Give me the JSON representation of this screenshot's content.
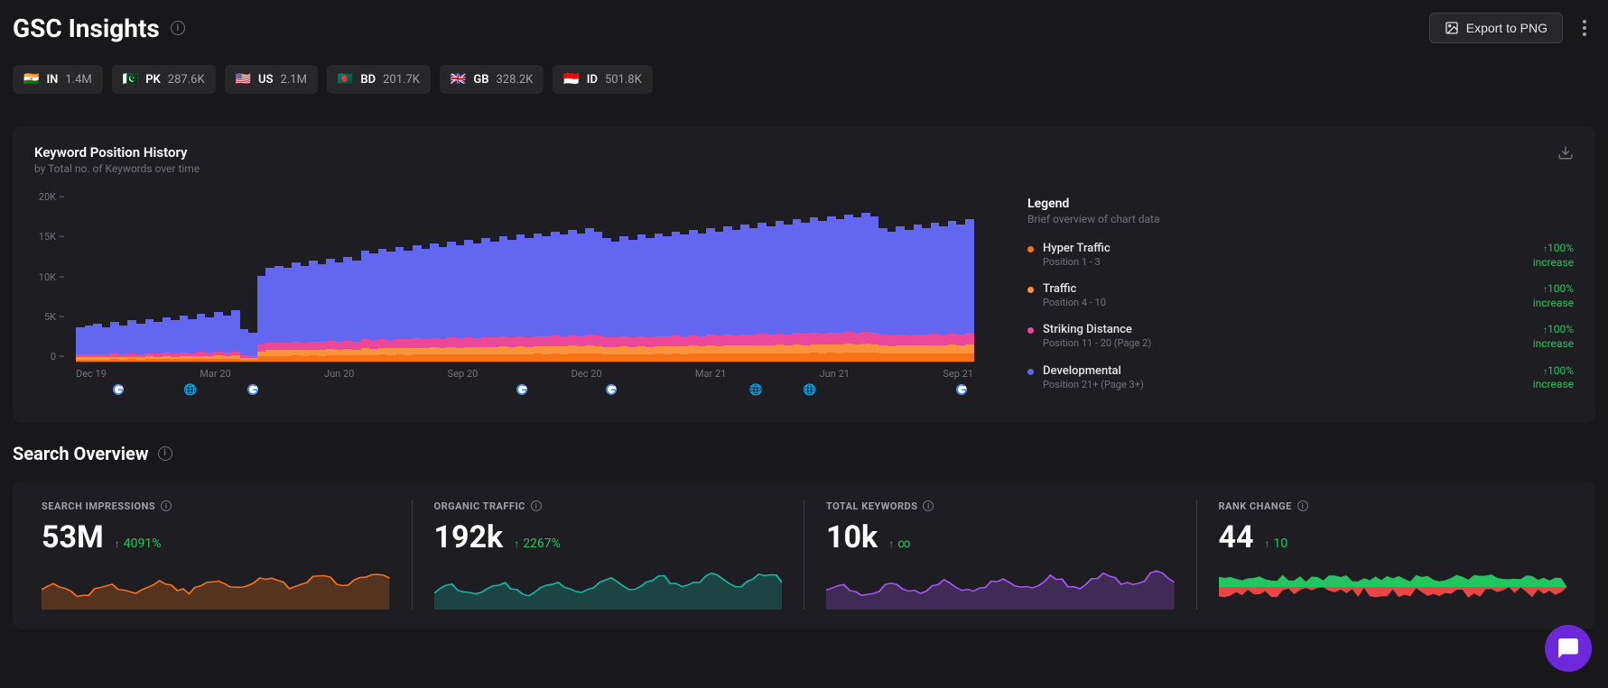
{
  "header": {
    "title": "GSC Insights",
    "export_label": "Export to PNG"
  },
  "countries": [
    {
      "flag": "🇮🇳",
      "code": "IN",
      "value": "1.4M"
    },
    {
      "flag": "🇵🇰",
      "code": "PK",
      "value": "287.6K"
    },
    {
      "flag": "🇺🇸",
      "code": "US",
      "value": "2.1M"
    },
    {
      "flag": "🇧🇩",
      "code": "BD",
      "value": "201.7K"
    },
    {
      "flag": "🇬🇧",
      "code": "GB",
      "value": "328.2K"
    },
    {
      "flag": "🇮🇩",
      "code": "ID",
      "value": "501.8K"
    }
  ],
  "chart": {
    "title": "Keyword Position History",
    "subtitle": "by Total no. of Keywords over time",
    "type": "stacked-bar",
    "y_ticks": [
      "20K",
      "15K",
      "10K",
      "5K",
      "0"
    ],
    "ylim": [
      0,
      20000
    ],
    "x_labels": [
      "Dec 19",
      "Mar 20",
      "Jun 20",
      "Sep 20",
      "Dec 20",
      "Mar 21",
      "Jun 21",
      "Sep 21"
    ],
    "x_markers": [
      {
        "emoji": "🔴🟡🔵",
        "pos_pct": 4,
        "type": "google"
      },
      {
        "emoji": "🔵",
        "pos_pct": 12,
        "type": "other"
      },
      {
        "emoji": "🔴🟡🔵",
        "pos_pct": 19,
        "type": "google"
      },
      {
        "emoji": "🔴🟡🔵",
        "pos_pct": 49,
        "type": "google"
      },
      {
        "emoji": "🔴🟡🔵",
        "pos_pct": 59,
        "type": "google"
      },
      {
        "emoji": "🟣",
        "pos_pct": 75,
        "type": "other"
      },
      {
        "emoji": "🟣",
        "pos_pct": 81,
        "type": "other"
      },
      {
        "emoji": "🔴🟡🔵",
        "pos_pct": 98,
        "type": "google"
      }
    ],
    "colors": {
      "hyper": "#f97316",
      "traffic": "#fb923c",
      "striking": "#ec4899",
      "developmental": "#6366f1",
      "background": "#1e1e22",
      "grid": "#3f3f46"
    },
    "series_heights": [
      [
        0.2,
        0.21,
        0.22,
        0.2,
        0.23,
        0.21,
        0.24,
        0.22,
        0.25,
        0.23,
        0.26,
        0.24,
        0.27,
        0.25,
        0.28,
        0.26,
        0.29,
        0.27,
        0.3,
        0.19,
        0.17,
        0.5,
        0.55,
        0.56,
        0.55,
        0.58,
        0.56,
        0.59,
        0.57,
        0.6,
        0.58,
        0.61,
        0.59,
        0.65,
        0.63,
        0.66,
        0.64,
        0.67,
        0.65,
        0.68,
        0.66,
        0.69,
        0.67,
        0.7,
        0.68,
        0.71,
        0.69,
        0.72,
        0.7,
        0.73,
        0.71,
        0.74,
        0.72,
        0.75,
        0.73,
        0.76,
        0.74,
        0.77,
        0.75,
        0.78,
        0.76,
        0.72,
        0.7,
        0.73,
        0.71,
        0.74,
        0.72,
        0.75,
        0.73,
        0.76,
        0.74,
        0.77,
        0.75,
        0.78,
        0.76,
        0.79,
        0.77,
        0.8,
        0.78,
        0.81,
        0.79,
        0.82,
        0.8,
        0.83,
        0.81,
        0.84,
        0.82,
        0.85,
        0.83,
        0.86,
        0.84,
        0.87,
        0.85,
        0.78,
        0.76,
        0.79,
        0.77,
        0.8,
        0.78,
        0.81,
        0.79,
        0.82,
        0.8,
        0.83
      ],
      [
        0.7,
        0.7,
        0.7,
        0.7,
        0.7,
        0.7,
        0.7,
        0.7,
        0.7,
        0.7,
        0.7,
        0.7,
        0.7,
        0.7,
        0.7,
        0.7,
        0.7,
        0.7,
        0.7,
        0.7,
        0.7,
        0.7,
        0.7,
        0.7,
        0.7,
        0.7,
        0.7,
        0.7,
        0.7,
        0.7,
        0.7,
        0.7,
        0.7,
        0.7,
        0.7,
        0.7,
        0.7,
        0.7,
        0.7,
        0.7,
        0.7,
        0.7,
        0.7,
        0.7,
        0.7,
        0.7,
        0.7,
        0.7,
        0.7,
        0.7,
        0.7,
        0.7,
        0.7,
        0.7,
        0.7,
        0.7,
        0.7,
        0.7,
        0.7,
        0.7,
        0.7,
        0.7,
        0.7,
        0.7,
        0.7,
        0.7,
        0.7,
        0.7,
        0.7,
        0.7,
        0.7,
        0.7,
        0.7,
        0.7,
        0.7,
        0.7,
        0.7,
        0.7,
        0.7,
        0.7,
        0.7,
        0.7,
        0.7,
        0.7,
        0.7,
        0.7,
        0.7,
        0.7,
        0.7,
        0.7,
        0.7,
        0.7,
        0.7,
        0.7,
        0.7,
        0.7,
        0.7,
        0.7,
        0.7,
        0.7,
        0.7,
        0.7,
        0.7,
        0.7
      ]
    ],
    "stack_ratios": {
      "hyper": 0.06,
      "traffic": 0.06,
      "striking": 0.08,
      "developmental": 0.8
    },
    "legend": {
      "title": "Legend",
      "subtitle": "Brief overview of chart data",
      "items": [
        {
          "color": "#f97316",
          "name": "Hyper Traffic",
          "desc": "Position 1 - 3",
          "delta": "100%",
          "delta_label": "increase"
        },
        {
          "color": "#fb923c",
          "name": "Traffic",
          "desc": "Position 4 - 10",
          "delta": "100%",
          "delta_label": "increase"
        },
        {
          "color": "#ec4899",
          "name": "Striking Distance",
          "desc": "Position 11 - 20 (Page 2)",
          "delta": "100%",
          "delta_label": "increase"
        },
        {
          "color": "#6366f1",
          "name": "Developmental",
          "desc": "Position 21+ (Page 3+)",
          "delta": "100%",
          "delta_label": "increase"
        }
      ]
    }
  },
  "overview": {
    "title": "Search Overview",
    "metrics": [
      {
        "label": "SEARCH IMPRESSIONS",
        "value": "53M",
        "delta": "4091%",
        "color": "#f97316",
        "spark_fill": "#f9731640"
      },
      {
        "label": "ORGANIC TRAFFIC",
        "value": "192k",
        "delta": "2267%",
        "color": "#14b8a6",
        "spark_fill": "#14b8a640"
      },
      {
        "label": "TOTAL KEYWORDS",
        "value": "10k",
        "delta": "∞",
        "color": "#a855f7",
        "spark_fill": "#a855f740"
      },
      {
        "label": "RANK CHANGE",
        "value": "44",
        "delta": "10",
        "color": "#22c55e",
        "spark_fill": "#22c55e40",
        "dual": true
      }
    ]
  }
}
